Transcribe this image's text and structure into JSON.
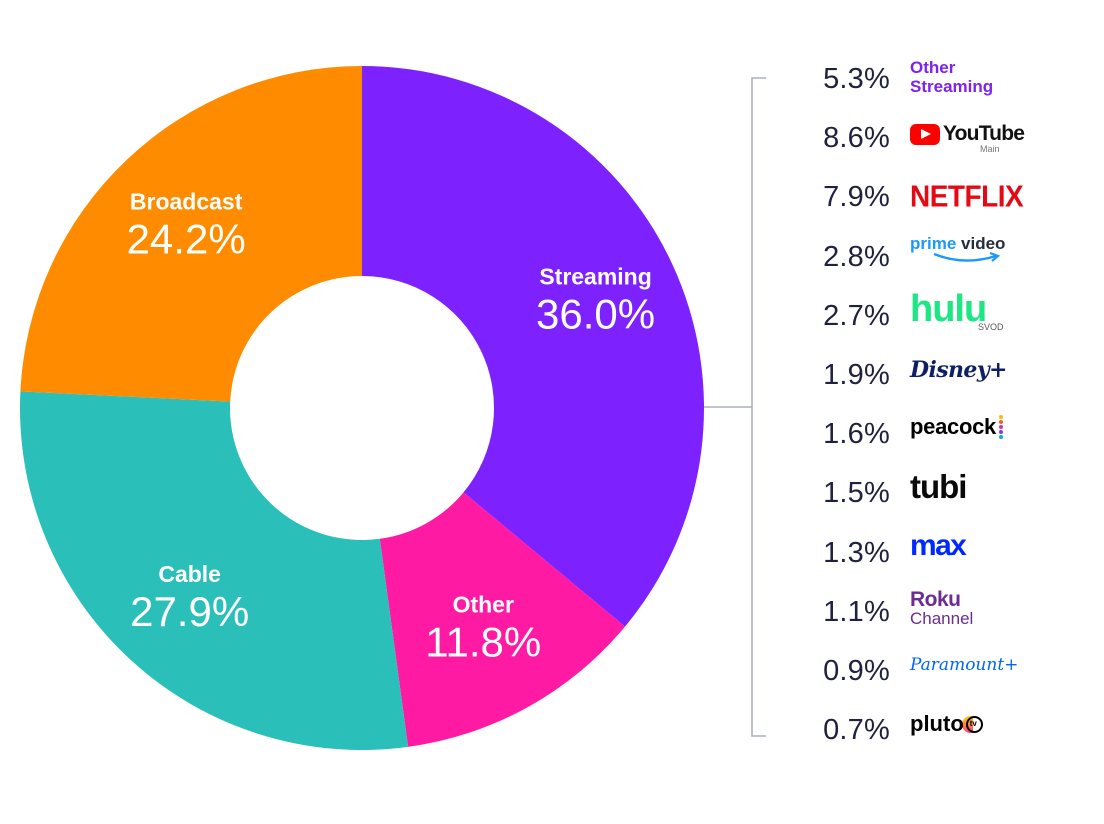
{
  "chart_data": {
    "type": "pie",
    "variant": "donut",
    "title": "",
    "slices": [
      {
        "label": "Streaming",
        "value": 36.0,
        "display": "36.0%",
        "color": "#7d22ff"
      },
      {
        "label": "Other",
        "value": 11.8,
        "display": "11.8%",
        "color": "#ff1aa3"
      },
      {
        "label": "Cable",
        "value": 27.9,
        "display": "27.9%",
        "color": "#2bbfb9"
      },
      {
        "label": "Broadcast",
        "value": 24.2,
        "display": "24.2%",
        "color": "#ff8c00"
      }
    ],
    "breakdown": {
      "parent": "Streaming",
      "items": [
        {
          "name": "Other Streaming",
          "value": 5.3,
          "display": "5.3%"
        },
        {
          "name": "YouTube",
          "sub": "Main",
          "value": 8.6,
          "display": "8.6%"
        },
        {
          "name": "NETFLIX",
          "value": 7.9,
          "display": "7.9%"
        },
        {
          "name": "prime video",
          "value": 2.8,
          "display": "2.8%"
        },
        {
          "name": "hulu",
          "sub": "SVOD",
          "value": 2.7,
          "display": "2.7%"
        },
        {
          "name": "Disney+",
          "value": 1.9,
          "display": "1.9%"
        },
        {
          "name": "peacock",
          "value": 1.6,
          "display": "1.6%"
        },
        {
          "name": "tubi",
          "value": 1.5,
          "display": "1.5%"
        },
        {
          "name": "max",
          "value": 1.3,
          "display": "1.3%"
        },
        {
          "name": "Roku Channel",
          "value": 1.1,
          "display": "1.1%"
        },
        {
          "name": "Paramount+",
          "value": 0.9,
          "display": "0.9%"
        },
        {
          "name": "pluto tv",
          "value": 0.7,
          "display": "0.7%"
        }
      ]
    }
  },
  "logos": {
    "other": {
      "line1": "Other",
      "line2": "Streaming"
    },
    "youtube": {
      "text": "YouTube",
      "sub": "Main"
    },
    "netflix": {
      "text": "NETFLIX"
    },
    "prime": {
      "word1": "prime",
      "word2": "video"
    },
    "hulu": {
      "text": "hulu",
      "sub": "SVOD"
    },
    "disney": {
      "text": "Disney+"
    },
    "peacock": {
      "text": "peacock"
    },
    "tubi": {
      "text": "tubi"
    },
    "max": {
      "text": "max"
    },
    "roku": {
      "line1": "Roku",
      "line2": "Channel"
    },
    "paramount": {
      "text": "Paramount+"
    },
    "pluto": {
      "text": "pluto",
      "badge": "tv"
    }
  },
  "colors": {
    "label_text": "#ffffff",
    "bracket": "#aab0c0",
    "percent_text": "#1f2140"
  }
}
